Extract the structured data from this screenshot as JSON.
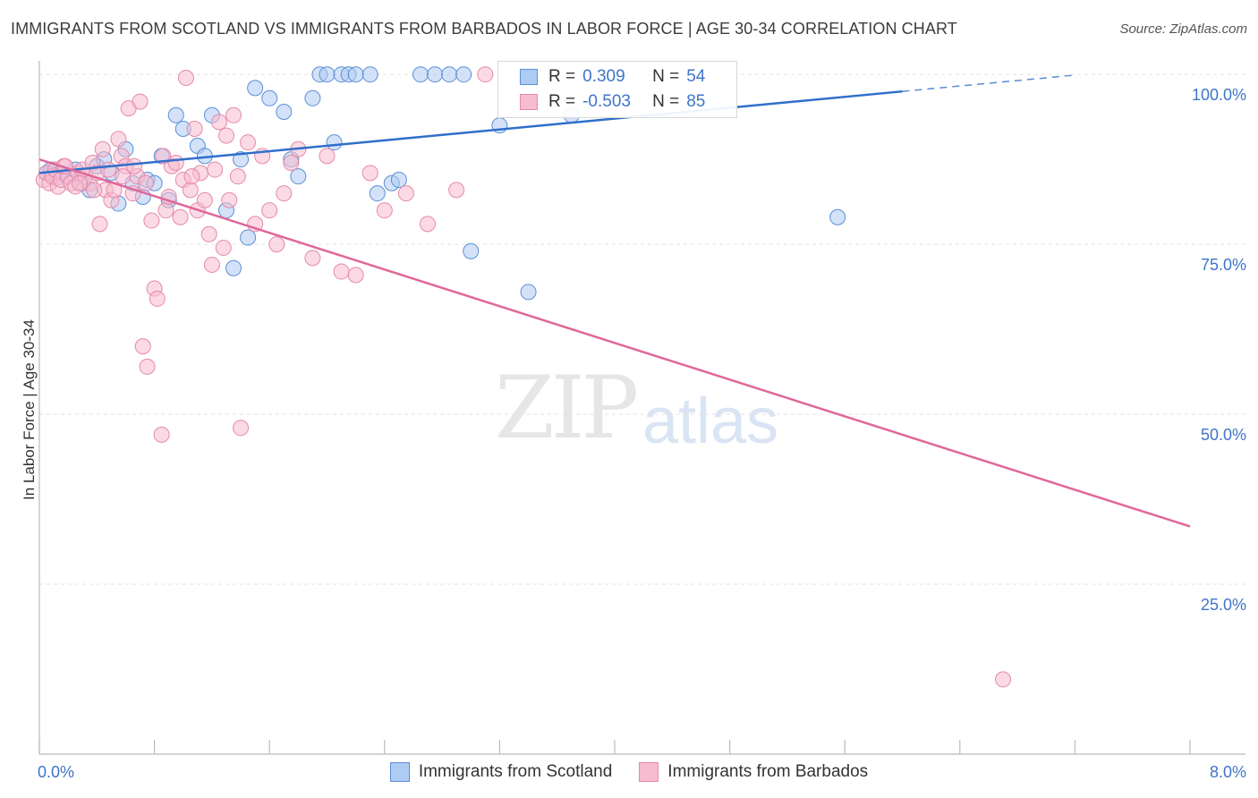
{
  "header": {
    "title": "IMMIGRANTS FROM SCOTLAND VS IMMIGRANTS FROM BARBADOS IN LABOR FORCE | AGE 30-34 CORRELATION CHART",
    "source": "Source: ZipAtlas.com"
  },
  "watermark": {
    "zip": "ZIP",
    "atlas": "atlas"
  },
  "legend": {
    "scotland": {
      "r_label": "R =",
      "r_value": "0.309",
      "n_label": "N =",
      "n_value": "54"
    },
    "barbados": {
      "r_label": "R =",
      "r_value": "-0.503",
      "n_label": "N =",
      "n_value": "85"
    }
  },
  "bottom_legend": {
    "scotland": "Immigrants from Scotland",
    "barbados": "Immigrants from Barbados"
  },
  "colors": {
    "scotland_fill": "#aecbf3",
    "scotland_stroke": "#5b8fd6",
    "scotland_line": "#2f6fcb",
    "barbados_fill": "#f7bcd0",
    "barbados_stroke": "#e58aa8",
    "barbados_line": "#e0679a",
    "tick_label": "#3f74c9",
    "grid": "#e3e3e3"
  },
  "chart_data": {
    "type": "scatter",
    "title": "IMMIGRANTS FROM SCOTLAND VS IMMIGRANTS FROM BARBADOS IN LABOR FORCE | AGE 30-34 CORRELATION CHART",
    "xlabel": "",
    "ylabel": "In Labor Force | Age 30-34",
    "xlim": [
      0,
      8
    ],
    "ylim": [
      0,
      102
    ],
    "x_tick_labels": [
      "0.0%",
      "8.0%"
    ],
    "y_ticks": [
      25,
      50,
      75,
      100
    ],
    "y_tick_labels": [
      "25.0%",
      "50.0%",
      "75.0%",
      "100.0%"
    ],
    "series": [
      {
        "name": "Immigrants from Scotland",
        "points": [
          [
            0.05,
            85.5
          ],
          [
            0.08,
            86
          ],
          [
            0.1,
            85.2
          ],
          [
            0.12,
            84.8
          ],
          [
            0.15,
            85.5
          ],
          [
            0.2,
            85
          ],
          [
            0.25,
            86
          ],
          [
            0.3,
            84
          ],
          [
            0.35,
            83
          ],
          [
            0.4,
            86.5
          ],
          [
            0.45,
            87.5
          ],
          [
            0.5,
            85.5
          ],
          [
            0.55,
            81
          ],
          [
            0.6,
            89
          ],
          [
            0.65,
            84
          ],
          [
            0.72,
            82
          ],
          [
            0.75,
            84.5
          ],
          [
            0.8,
            84
          ],
          [
            0.85,
            88
          ],
          [
            0.9,
            81.5
          ],
          [
            0.95,
            94
          ],
          [
            1.0,
            92
          ],
          [
            1.1,
            89.5
          ],
          [
            1.15,
            88
          ],
          [
            1.2,
            94
          ],
          [
            1.3,
            80
          ],
          [
            1.35,
            71.5
          ],
          [
            1.4,
            87.5
          ],
          [
            1.45,
            76
          ],
          [
            1.5,
            98
          ],
          [
            1.6,
            96.5
          ],
          [
            1.7,
            94.5
          ],
          [
            1.75,
            87.5
          ],
          [
            1.8,
            85
          ],
          [
            1.9,
            96.5
          ],
          [
            1.95,
            100
          ],
          [
            2.0,
            100
          ],
          [
            2.05,
            90
          ],
          [
            2.1,
            100
          ],
          [
            2.15,
            100
          ],
          [
            2.2,
            100
          ],
          [
            2.3,
            100
          ],
          [
            2.35,
            82.5
          ],
          [
            2.45,
            84
          ],
          [
            2.5,
            84.5
          ],
          [
            2.65,
            100
          ],
          [
            2.75,
            100
          ],
          [
            2.85,
            100
          ],
          [
            2.95,
            100
          ],
          [
            3.0,
            74
          ],
          [
            3.2,
            92.5
          ],
          [
            3.4,
            68
          ],
          [
            3.7,
            94
          ],
          [
            5.55,
            79
          ]
        ]
      },
      {
        "name": "Immigrants from Barbados",
        "points": [
          [
            0.03,
            84.5
          ],
          [
            0.05,
            85.5
          ],
          [
            0.07,
            84
          ],
          [
            0.09,
            85
          ],
          [
            0.11,
            86
          ],
          [
            0.13,
            83.5
          ],
          [
            0.15,
            84.5
          ],
          [
            0.17,
            86.5
          ],
          [
            0.2,
            85
          ],
          [
            0.22,
            84
          ],
          [
            0.25,
            83.5
          ],
          [
            0.27,
            85.5
          ],
          [
            0.3,
            86
          ],
          [
            0.32,
            85
          ],
          [
            0.35,
            84
          ],
          [
            0.37,
            87
          ],
          [
            0.4,
            85.5
          ],
          [
            0.42,
            78
          ],
          [
            0.44,
            89
          ],
          [
            0.46,
            83
          ],
          [
            0.48,
            86
          ],
          [
            0.5,
            81.5
          ],
          [
            0.52,
            83
          ],
          [
            0.55,
            90.5
          ],
          [
            0.57,
            88
          ],
          [
            0.6,
            86.5
          ],
          [
            0.62,
            95
          ],
          [
            0.65,
            82.5
          ],
          [
            0.68,
            85
          ],
          [
            0.7,
            96
          ],
          [
            0.72,
            60
          ],
          [
            0.75,
            57
          ],
          [
            0.78,
            78.5
          ],
          [
            0.8,
            68.5
          ],
          [
            0.82,
            67
          ],
          [
            0.85,
            47
          ],
          [
            0.88,
            80
          ],
          [
            0.9,
            82
          ],
          [
            0.92,
            86.5
          ],
          [
            0.95,
            87
          ],
          [
            0.98,
            79
          ],
          [
            1.0,
            84.5
          ],
          [
            1.02,
            99.5
          ],
          [
            1.05,
            83
          ],
          [
            1.08,
            92
          ],
          [
            1.1,
            80
          ],
          [
            1.12,
            85.5
          ],
          [
            1.15,
            81.5
          ],
          [
            1.18,
            76.5
          ],
          [
            1.2,
            72
          ],
          [
            1.22,
            86
          ],
          [
            1.25,
            93
          ],
          [
            1.28,
            74.5
          ],
          [
            1.3,
            91
          ],
          [
            1.32,
            81.5
          ],
          [
            1.35,
            94
          ],
          [
            1.38,
            85
          ],
          [
            1.4,
            48
          ],
          [
            1.45,
            90
          ],
          [
            1.5,
            78
          ],
          [
            1.55,
            88
          ],
          [
            1.6,
            80
          ],
          [
            1.65,
            75
          ],
          [
            1.7,
            82.5
          ],
          [
            1.75,
            87
          ],
          [
            1.8,
            89
          ],
          [
            1.9,
            73
          ],
          [
            2.0,
            88
          ],
          [
            2.1,
            71
          ],
          [
            2.2,
            70.5
          ],
          [
            2.3,
            85.5
          ],
          [
            2.4,
            80
          ],
          [
            2.55,
            82.5
          ],
          [
            2.7,
            78
          ],
          [
            2.9,
            83
          ],
          [
            3.1,
            100
          ],
          [
            0.18,
            86.5
          ],
          [
            0.28,
            84
          ],
          [
            0.38,
            83
          ],
          [
            0.58,
            85
          ],
          [
            0.66,
            86.5
          ],
          [
            0.74,
            84
          ],
          [
            0.86,
            88
          ],
          [
            1.06,
            85
          ],
          [
            6.7,
            11
          ]
        ]
      }
    ],
    "trend_lines": [
      {
        "name": "Immigrants from Scotland",
        "x": [
          0.0,
          6.0
        ],
        "y": [
          85.5,
          97.5
        ],
        "dashed_extension_to_x": 7.2
      },
      {
        "name": "Immigrants from Barbados",
        "x": [
          0.0,
          8.0
        ],
        "y": [
          87.5,
          33.5
        ]
      }
    ]
  }
}
